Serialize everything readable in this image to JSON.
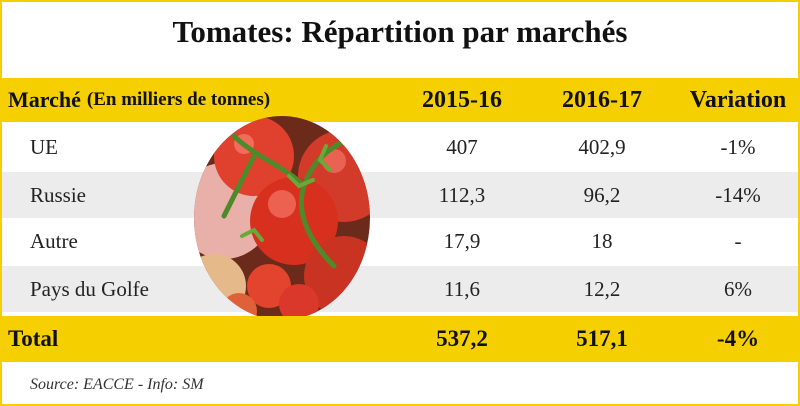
{
  "title": "Tomates: Répartition par marchés",
  "header": {
    "market": "Marché",
    "unit": "(En milliers de tonnes)",
    "year1": "2015-16",
    "year2": "2016-17",
    "variation": "Variation"
  },
  "rows": [
    {
      "market": "UE",
      "y1": "407",
      "y2": "402,9",
      "variation": "-1%"
    },
    {
      "market": "Russie",
      "y1": "112,3",
      "y2": "96,2",
      "variation": "-14%"
    },
    {
      "market": "Autre",
      "y1": "17,9",
      "y2": "18",
      "variation": "-"
    },
    {
      "market": "Pays du Golfe",
      "y1": "11,6",
      "y2": "12,2",
      "variation": "6%"
    }
  ],
  "total": {
    "label": "Total",
    "y1": "537,2",
    "y2": "517,1",
    "variation": "-4%"
  },
  "source": "Source: EACCE - Info: SM",
  "colors": {
    "accent": "#f5cf00",
    "stripe": "#ececec"
  },
  "image": {
    "icon": "tomatoes-photo"
  }
}
